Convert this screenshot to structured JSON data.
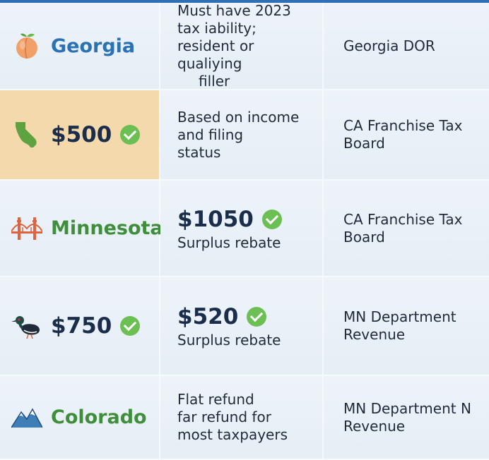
{
  "rows": [
    {
      "state": "Georgia",
      "icon": "peach-icon",
      "description": [
        "Must have 2023",
        "tax iability;",
        "resident or qualiying",
        "filler"
      ],
      "agency": [
        "Georgia DOR"
      ]
    },
    {
      "amount": "$500",
      "icon": "california-map-icon",
      "description": [
        "Based on income",
        "and filing",
        "status"
      ],
      "agency": [
        "CA Franchise Tax",
        "Board"
      ]
    },
    {
      "state": "Minnesota",
      "icon": "golden-gate-bridge-icon",
      "amount": "$1050",
      "sub": "Surplus rebate",
      "agency": [
        "CA Franchise Tax",
        "Board"
      ]
    },
    {
      "amount": "$750",
      "icon": "loon-bird-icon",
      "amount2": "$520",
      "sub": "Surplus rebate",
      "agency": [
        "MN Department",
        "Revenue"
      ]
    },
    {
      "state": "Colorado",
      "icon": "mountain-icon",
      "description": [
        "Flat refund",
        "far refund for",
        "most taxpayers"
      ],
      "agency": [
        "MN Department N",
        "Revenue"
      ]
    }
  ],
  "colors": {
    "highlight": "#f3d9ac",
    "check": "#6cbf52",
    "state_blue": "#2b72b5",
    "state_green": "#3f8e3c"
  }
}
